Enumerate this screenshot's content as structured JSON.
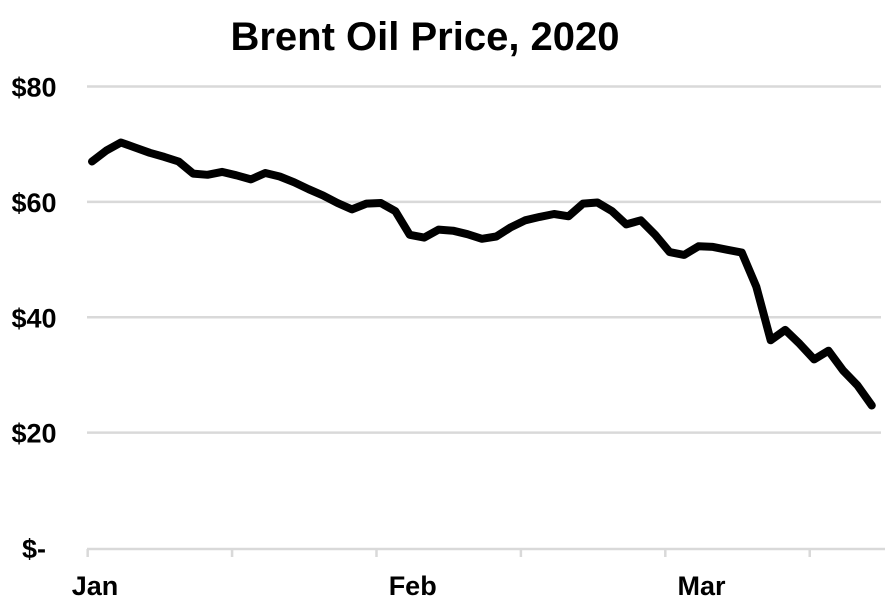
{
  "title": "Brent Oil Price, 2020",
  "chart_data": {
    "type": "line",
    "title": "Brent Oil Price, 2020",
    "xlabel": "",
    "ylabel": "",
    "ylim": [
      0,
      80
    ],
    "grid": "horizontal",
    "legend": "none",
    "line_color": "#000000",
    "line_width": 8,
    "gridline_color": "#d9d9d9",
    "axis_color": "#d9d9d9",
    "text_color": "#000000",
    "background_color": "#ffffff",
    "y_ticks": [
      {
        "label": "$80",
        "value": 80
      },
      {
        "label": "$60",
        "value": 60
      },
      {
        "label": "$40",
        "value": 40
      },
      {
        "label": "$20",
        "value": 20
      },
      {
        "label": "$-",
        "value": 0
      }
    ],
    "x_month_labels": [
      {
        "label": "Jan",
        "index": 0
      },
      {
        "label": "Feb",
        "index": 22
      },
      {
        "label": "Mar",
        "index": 42
      }
    ],
    "x_minor_tick_every": 10,
    "dates": [
      "2020-01-02",
      "2020-01-03",
      "2020-01-06",
      "2020-01-07",
      "2020-01-08",
      "2020-01-09",
      "2020-01-10",
      "2020-01-13",
      "2020-01-14",
      "2020-01-15",
      "2020-01-16",
      "2020-01-17",
      "2020-01-20",
      "2020-01-21",
      "2020-01-22",
      "2020-01-23",
      "2020-01-24",
      "2020-01-27",
      "2020-01-28",
      "2020-01-29",
      "2020-01-30",
      "2020-01-31",
      "2020-02-03",
      "2020-02-04",
      "2020-02-05",
      "2020-02-06",
      "2020-02-07",
      "2020-02-10",
      "2020-02-11",
      "2020-02-12",
      "2020-02-13",
      "2020-02-14",
      "2020-02-17",
      "2020-02-18",
      "2020-02-19",
      "2020-02-20",
      "2020-02-21",
      "2020-02-24",
      "2020-02-25",
      "2020-02-26",
      "2020-02-27",
      "2020-02-28",
      "2020-03-02",
      "2020-03-03",
      "2020-03-04",
      "2020-03-05",
      "2020-03-06",
      "2020-03-09",
      "2020-03-10",
      "2020-03-11",
      "2020-03-12",
      "2020-03-13",
      "2020-03-16",
      "2020-03-17",
      "2020-03-18"
    ],
    "values": [
      67.0,
      68.9,
      70.3,
      69.4,
      68.5,
      67.8,
      67.0,
      64.9,
      64.7,
      65.2,
      64.6,
      63.9,
      65.0,
      64.4,
      63.4,
      62.2,
      61.1,
      59.8,
      58.7,
      59.7,
      59.8,
      58.4,
      54.3,
      53.8,
      55.2,
      55.0,
      54.4,
      53.6,
      54.0,
      55.6,
      56.8,
      57.4,
      57.9,
      57.5,
      59.7,
      59.9,
      58.4,
      56.1,
      56.8,
      54.3,
      51.3,
      50.8,
      52.3,
      52.2,
      51.7,
      51.2,
      45.3,
      36.0,
      37.8,
      35.4,
      32.7,
      34.2,
      30.8,
      28.2,
      24.7
    ]
  }
}
